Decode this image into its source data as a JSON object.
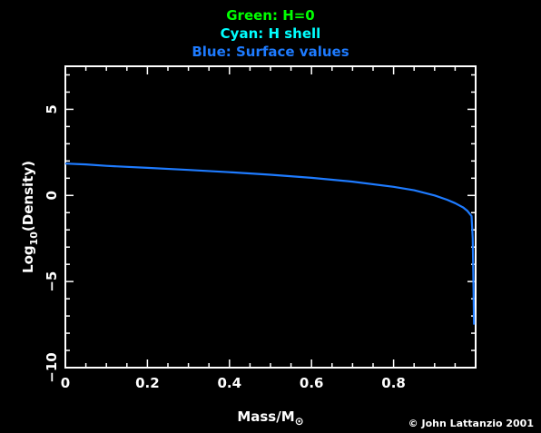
{
  "legend": {
    "green": "Green: H=0",
    "cyan": "Cyan: H shell",
    "blue": "Blue: Surface values"
  },
  "colors": {
    "green": "#00ff00",
    "cyan": "#00ffff",
    "blue": "#1e7bff",
    "axes": "#ffffff",
    "background": "#000000"
  },
  "credit": "© John Lattanzio 2001",
  "chart_data": {
    "type": "line",
    "xlabel": "Mass/M",
    "xlabel_symbol": "⊙",
    "ylabel": "Log",
    "ylabel_sub": "10",
    "ylabel_suffix": "(Density)",
    "xlim": [
      0,
      1.0
    ],
    "ylim": [
      -10,
      7.5
    ],
    "xticks": [
      0,
      0.2,
      0.4,
      0.6,
      0.8
    ],
    "xtick_labels": [
      "0",
      "0.2",
      "0.4",
      "0.6",
      "0.8"
    ],
    "yticks": [
      -10,
      -5,
      0,
      5
    ],
    "ytick_labels": [
      "−10",
      "−5",
      "0",
      "5"
    ],
    "series": [
      {
        "name": "Blue: Surface values",
        "color": "#1e7bff",
        "x": [
          0.0,
          0.05,
          0.1,
          0.2,
          0.3,
          0.4,
          0.5,
          0.6,
          0.7,
          0.8,
          0.85,
          0.9,
          0.93,
          0.95,
          0.97,
          0.98,
          0.99,
          0.993,
          0.995,
          0.996
        ],
        "y": [
          1.85,
          1.8,
          1.72,
          1.6,
          1.48,
          1.35,
          1.2,
          1.02,
          0.8,
          0.5,
          0.3,
          0.0,
          -0.25,
          -0.45,
          -0.7,
          -0.9,
          -1.2,
          -2.5,
          -5.5,
          -7.5
        ]
      }
    ]
  }
}
